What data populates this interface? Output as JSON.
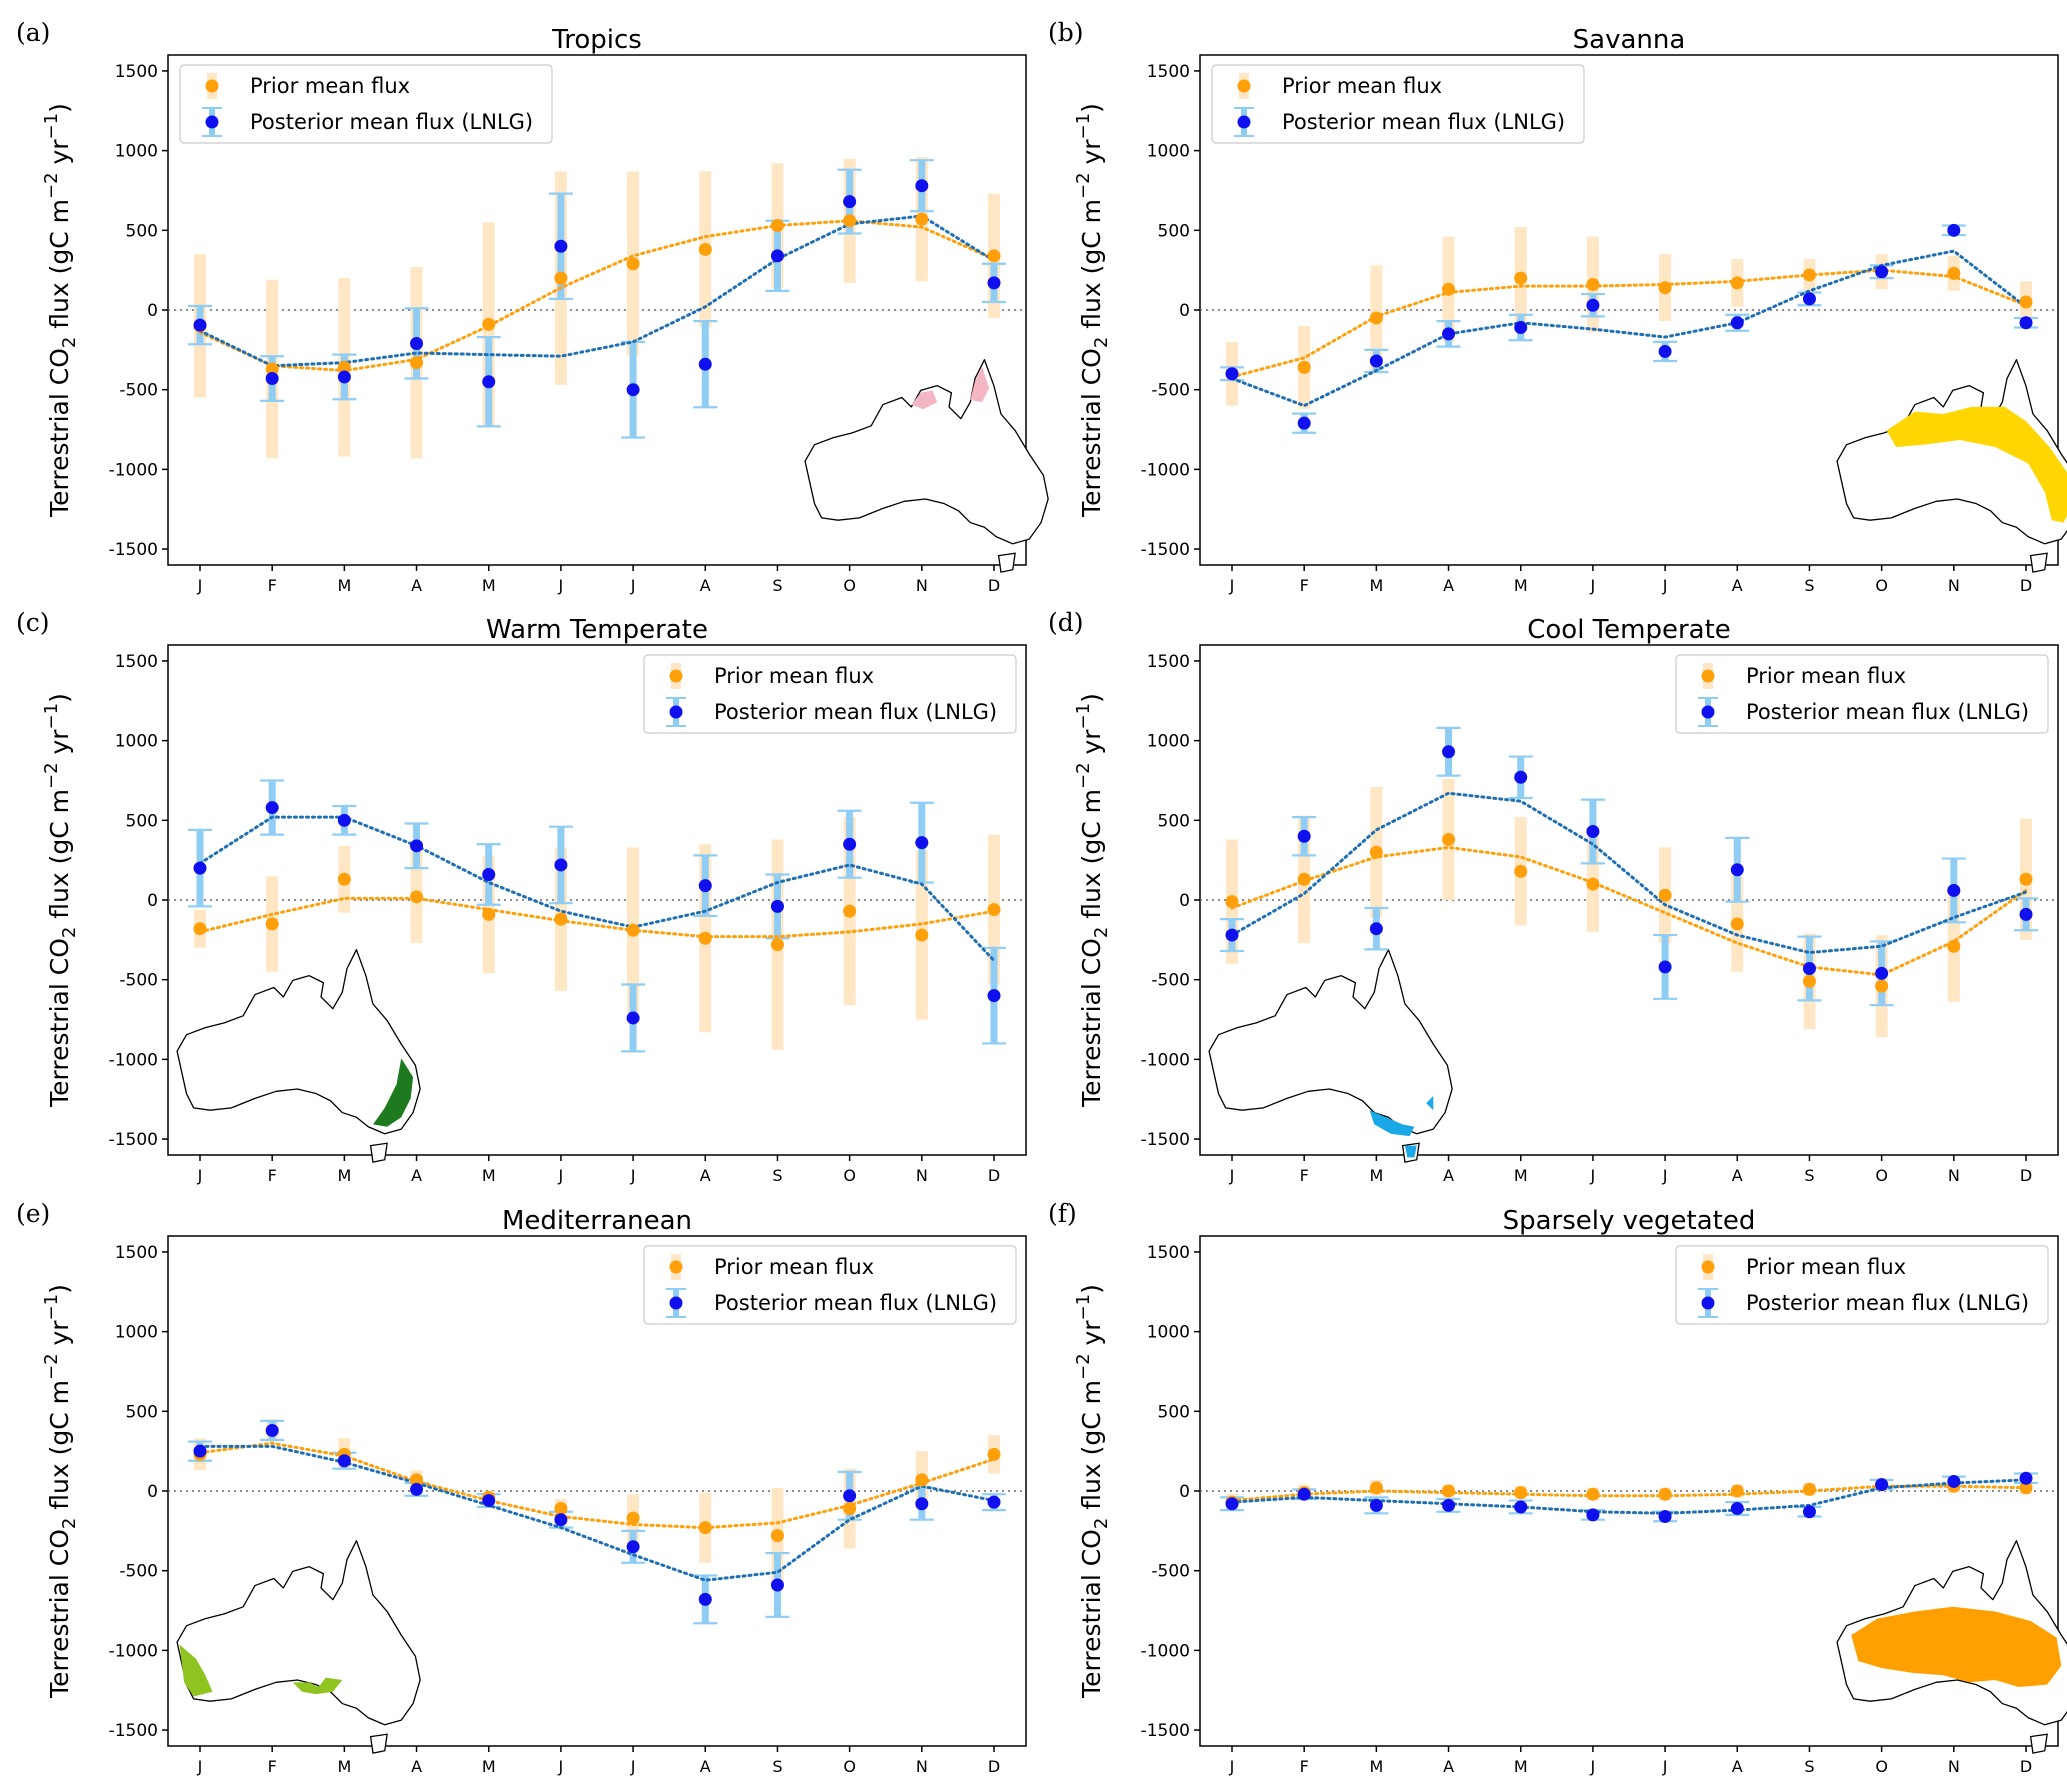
{
  "colors": {
    "prior": "#ff9f0a",
    "prior_err": "#ffe6c4",
    "posterior": "#1010ee",
    "posterior_err": "#8fcdf5",
    "posterior_line": "#1f6fb5",
    "zero_line": "#666666",
    "frame": "#000000"
  },
  "legend_labels": {
    "prior": "Prior mean flux",
    "posterior": "Posterior mean flux (LNLG)"
  },
  "ylabel_parts": {
    "a": "Terrestrial CO",
    "sub": "2",
    "b": " flux (gC m",
    "sup1": "−2",
    "c": " yr",
    "sup2": "−1",
    "d": ")"
  },
  "chart_data": [
    {
      "panel": "(a)",
      "type": "scatter",
      "title": "Tropics",
      "categories": [
        "J",
        "F",
        "M",
        "A",
        "M",
        "J",
        "J",
        "A",
        "S",
        "O",
        "N",
        "D"
      ],
      "xlabel": "",
      "ylabel": "Terrestrial CO2 flux (gC m−2 yr−1)",
      "ylim": [
        -1600,
        1600
      ],
      "yticks": [
        1500,
        1000,
        500,
        0,
        -500,
        -1000,
        -1500
      ],
      "legend_position": "top-left",
      "region_color": "#f4b6c2",
      "map_position": "bottom-right",
      "series": [
        {
          "name": "Prior mean flux",
          "values": [
            -100,
            -370,
            -360,
            -330,
            -90,
            200,
            290,
            380,
            530,
            560,
            570,
            340
          ],
          "err": [
            450,
            560,
            560,
            600,
            640,
            670,
            580,
            490,
            390,
            390,
            390,
            390
          ],
          "fit": [
            -140,
            -350,
            -380,
            -310,
            -100,
            140,
            340,
            460,
            530,
            560,
            520,
            320
          ]
        },
        {
          "name": "Posterior mean flux (LNLG)",
          "values": [
            -95,
            -430,
            -420,
            -210,
            -450,
            400,
            -500,
            -340,
            340,
            680,
            780,
            170
          ],
          "err": [
            120,
            140,
            140,
            220,
            280,
            330,
            300,
            270,
            220,
            200,
            160,
            120
          ],
          "fit": [
            -130,
            -350,
            -330,
            -270,
            -280,
            -290,
            -200,
            20,
            320,
            540,
            590,
            310
          ]
        }
      ]
    },
    {
      "panel": "(b)",
      "type": "scatter",
      "title": "Savanna",
      "categories": [
        "J",
        "F",
        "M",
        "A",
        "M",
        "J",
        "J",
        "A",
        "S",
        "O",
        "N",
        "D"
      ],
      "xlabel": "",
      "ylabel": "Terrestrial CO2 flux (gC m−2 yr−1)",
      "ylim": [
        -1600,
        1600
      ],
      "yticks": [
        1500,
        1000,
        500,
        0,
        -500,
        -1000,
        -1500
      ],
      "legend_position": "top-left",
      "region_color": "#ffd600",
      "map_position": "bottom-right",
      "series": [
        {
          "name": "Prior mean flux",
          "values": [
            -400,
            -360,
            -50,
            130,
            200,
            160,
            140,
            170,
            220,
            240,
            230,
            50
          ],
          "err": [
            200,
            260,
            330,
            330,
            320,
            300,
            210,
            150,
            100,
            110,
            110,
            130
          ],
          "fit": [
            -420,
            -300,
            -40,
            110,
            150,
            150,
            160,
            180,
            220,
            250,
            210,
            30
          ]
        },
        {
          "name": "Posterior mean flux (LNLG)",
          "values": [
            -400,
            -710,
            -320,
            -150,
            -110,
            30,
            -260,
            -80,
            70,
            240,
            500,
            -80
          ],
          "err": [
            40,
            60,
            70,
            80,
            80,
            70,
            60,
            50,
            40,
            40,
            30,
            30
          ],
          "fit": [
            -430,
            -600,
            -380,
            -150,
            -80,
            -120,
            -170,
            -80,
            120,
            280,
            370,
            20
          ]
        }
      ]
    },
    {
      "panel": "(c)",
      "type": "scatter",
      "title": "Warm Temperate",
      "categories": [
        "J",
        "F",
        "M",
        "A",
        "M",
        "J",
        "J",
        "A",
        "S",
        "O",
        "N",
        "D"
      ],
      "xlabel": "",
      "ylabel": "Terrestrial CO2 flux (gC m−2 yr−1)",
      "ylim": [
        -1600,
        1600
      ],
      "yticks": [
        1500,
        1000,
        500,
        0,
        -500,
        -1000,
        -1500
      ],
      "legend_position": "top-right",
      "region_color": "#1e7a1e",
      "map_position": "bottom-left",
      "series": [
        {
          "name": "Prior mean flux",
          "values": [
            -180,
            -150,
            130,
            20,
            -90,
            -120,
            -190,
            -240,
            -280,
            -70,
            -220,
            -60
          ],
          "err": [
            120,
            300,
            210,
            290,
            370,
            450,
            520,
            590,
            660,
            590,
            530,
            470
          ],
          "fit": [
            -200,
            -90,
            10,
            10,
            -60,
            -130,
            -190,
            -230,
            -230,
            -200,
            -150,
            -70
          ]
        },
        {
          "name": "Posterior mean flux (LNLG)",
          "values": [
            200,
            580,
            500,
            340,
            160,
            220,
            -740,
            90,
            -40,
            350,
            360,
            -600
          ],
          "err": [
            240,
            170,
            90,
            140,
            190,
            240,
            210,
            190,
            200,
            210,
            250,
            300
          ],
          "fit": [
            230,
            520,
            520,
            340,
            110,
            -70,
            -170,
            -70,
            110,
            220,
            100,
            -380
          ]
        }
      ]
    },
    {
      "panel": "(d)",
      "type": "scatter",
      "title": "Cool Temperate",
      "categories": [
        "J",
        "F",
        "M",
        "A",
        "M",
        "J",
        "J",
        "A",
        "S",
        "O",
        "N",
        "D"
      ],
      "xlabel": "",
      "ylabel": "Terrestrial CO2 flux (gC m−2 yr−1)",
      "ylim": [
        -1600,
        1600
      ],
      "yticks": [
        1500,
        1000,
        500,
        0,
        -500,
        -1000,
        -1500
      ],
      "legend_position": "top-right",
      "region_color": "#1aa9e6",
      "map_position": "bottom-left",
      "series": [
        {
          "name": "Prior mean flux",
          "values": [
            -10,
            130,
            300,
            380,
            180,
            100,
            30,
            -150,
            -510,
            -540,
            -290,
            130
          ],
          "err": [
            390,
            400,
            410,
            380,
            340,
            300,
            300,
            300,
            300,
            320,
            350,
            380
          ],
          "fit": [
            -50,
            120,
            270,
            330,
            270,
            110,
            -80,
            -270,
            -420,
            -470,
            -260,
            60
          ]
        },
        {
          "name": "Posterior mean flux (LNLG)",
          "values": [
            -220,
            400,
            -180,
            930,
            770,
            430,
            -420,
            190,
            -430,
            -460,
            60,
            -90
          ],
          "err": [
            100,
            120,
            130,
            150,
            130,
            200,
            200,
            200,
            200,
            200,
            200,
            100
          ],
          "fit": [
            -220,
            40,
            440,
            670,
            620,
            350,
            -30,
            -220,
            -330,
            -290,
            -110,
            50
          ]
        }
      ]
    },
    {
      "panel": "(e)",
      "type": "scatter",
      "title": "Mediterranean",
      "categories": [
        "J",
        "F",
        "M",
        "A",
        "M",
        "J",
        "J",
        "A",
        "S",
        "O",
        "N",
        "D"
      ],
      "xlabel": "",
      "ylabel": "Terrestrial CO2 flux (gC m−2 yr−1)",
      "ylim": [
        -1600,
        1600
      ],
      "yticks": [
        1500,
        1000,
        500,
        0,
        -500,
        -1000,
        -1500
      ],
      "legend_position": "top-right",
      "region_color": "#8fc31f",
      "map_position": "bottom-left",
      "series": [
        {
          "name": "Prior mean flux",
          "values": [
            230,
            380,
            230,
            70,
            -40,
            -110,
            -170,
            -230,
            -280,
            -110,
            70,
            230
          ],
          "err": [
            100,
            70,
            100,
            60,
            40,
            60,
            150,
            220,
            300,
            250,
            180,
            120
          ],
          "fit": [
            240,
            300,
            220,
            60,
            -60,
            -160,
            -210,
            -230,
            -200,
            -90,
            50,
            200
          ]
        },
        {
          "name": "Posterior mean flux (LNLG)",
          "values": [
            250,
            380,
            190,
            10,
            -60,
            -180,
            -350,
            -680,
            -590,
            -30,
            -80,
            -70
          ],
          "err": [
            60,
            60,
            50,
            40,
            40,
            50,
            100,
            150,
            200,
            150,
            100,
            50
          ],
          "fit": [
            280,
            280,
            180,
            50,
            -90,
            -230,
            -400,
            -560,
            -510,
            -180,
            30,
            -60
          ]
        }
      ]
    },
    {
      "panel": "(f)",
      "type": "scatter",
      "title": "Sparsely vegetated",
      "categories": [
        "J",
        "F",
        "M",
        "A",
        "M",
        "J",
        "J",
        "A",
        "S",
        "O",
        "N",
        "D"
      ],
      "xlabel": "",
      "ylabel": "Terrestrial CO2 flux (gC m−2 yr−1)",
      "ylim": [
        -1600,
        1600
      ],
      "yticks": [
        1500,
        1000,
        500,
        0,
        -500,
        -1000,
        -1500
      ],
      "legend_position": "top-right",
      "region_color": "#ffa000",
      "map_position": "bottom-right",
      "series": [
        {
          "name": "Prior mean flux",
          "values": [
            -70,
            -10,
            20,
            0,
            -10,
            -20,
            -20,
            0,
            10,
            40,
            30,
            20
          ],
          "err": [
            50,
            50,
            50,
            40,
            40,
            40,
            40,
            40,
            40,
            40,
            40,
            40
          ],
          "fit": [
            -60,
            -20,
            0,
            -10,
            -20,
            -30,
            -30,
            -20,
            0,
            30,
            30,
            20
          ]
        },
        {
          "name": "Posterior mean flux (LNLG)",
          "values": [
            -80,
            -20,
            -90,
            -90,
            -100,
            -150,
            -160,
            -110,
            -130,
            40,
            60,
            80
          ],
          "err": [
            40,
            30,
            50,
            40,
            40,
            30,
            30,
            40,
            30,
            30,
            30,
            30
          ],
          "fit": [
            -70,
            -40,
            -60,
            -80,
            -100,
            -130,
            -140,
            -120,
            -90,
            20,
            50,
            70
          ]
        }
      ]
    }
  ]
}
